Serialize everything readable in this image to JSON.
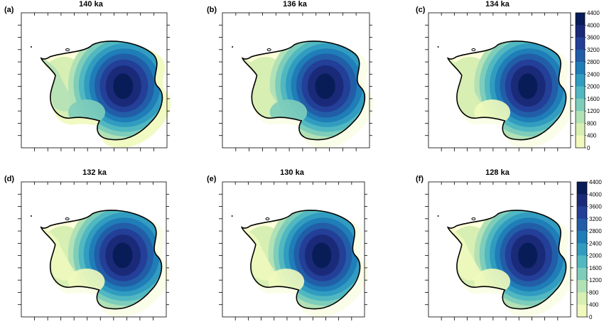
{
  "figure": {
    "panels": [
      {
        "label": "(a)",
        "title": "140 ka"
      },
      {
        "label": "(b)",
        "title": "136 ka"
      },
      {
        "label": "(c)",
        "title": "134 ka"
      },
      {
        "label": "(d)",
        "title": "132 ka"
      },
      {
        "label": "(e)",
        "title": "130 ka"
      },
      {
        "label": "(f)",
        "title": "128 ka"
      }
    ]
  },
  "chart_data": {
    "type": "heatmap",
    "description_of_field": "ice thickness contour maps",
    "colorbar": {
      "ticks": [
        "4400",
        "4000",
        "3600",
        "3200",
        "2800",
        "2400",
        "2000",
        "1600",
        "1200",
        "800",
        "400",
        "0"
      ],
      "levels": [
        0,
        400,
        800,
        1200,
        1600,
        2000,
        2400,
        2800,
        3200,
        3600,
        4000,
        4400
      ],
      "colors": [
        "#ffffd9",
        "#f1f9bd",
        "#d8efb3",
        "#b2e1b6",
        "#7ecdbb",
        "#51b8c1",
        "#319cc0",
        "#1f7db7",
        "#225da8",
        "#233f97",
        "#1a2a78",
        "#081d58"
      ]
    },
    "colorbars_shown_for_panels": [
      "(c)",
      "(f)"
    ]
  }
}
